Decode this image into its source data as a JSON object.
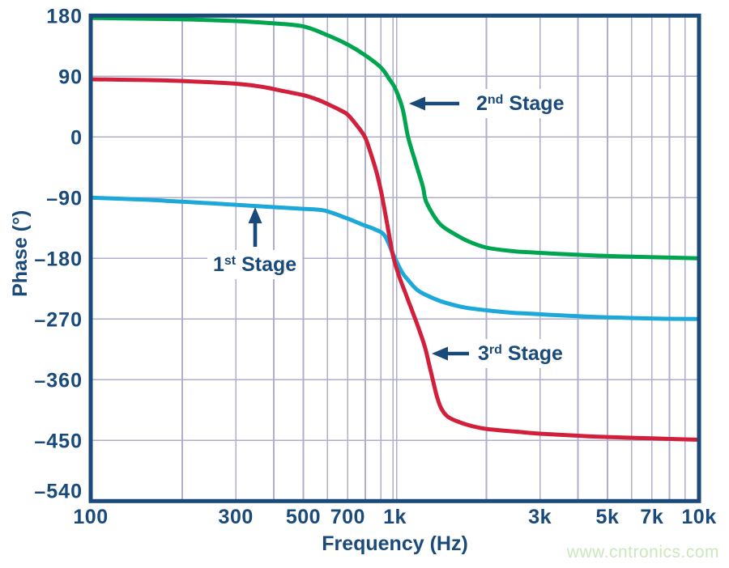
{
  "figure": {
    "watermark": {
      "text": "www.cntronics.com",
      "color": "#CBE8BD"
    },
    "colors": {
      "navy": "#1A4A7A",
      "grid": "#AFAECB",
      "background": "#FFFFFF",
      "stage1_cyan": "#1CA8D8",
      "stage2_green": "#00A550",
      "stage3_red": "#D2203C"
    }
  },
  "chart_data": {
    "type": "line",
    "title": "",
    "xlabel": "Frequency (Hz)",
    "ylabel": "Phase (°)",
    "x_scale": "log",
    "x_range": [
      100,
      10000
    ],
    "y_range": [
      -540,
      180
    ],
    "grid": true,
    "y_ticks": [
      {
        "label": "180",
        "value": 180
      },
      {
        "label": "90",
        "value": 90
      },
      {
        "label": "0",
        "value": 0
      },
      {
        "label": "–90",
        "value": -90
      },
      {
        "label": "–180",
        "value": -180
      },
      {
        "label": "–270",
        "value": -270
      },
      {
        "label": "–360",
        "value": -360
      },
      {
        "label": "–450",
        "value": -450
      },
      {
        "label": "–540",
        "value": -540
      }
    ],
    "x_ticks": [
      {
        "label": "100",
        "value": 100
      },
      {
        "label": "300",
        "value": 300
      },
      {
        "label": "500",
        "value": 500
      },
      {
        "label": "700",
        "value": 700
      },
      {
        "label": "1k",
        "value": 1000
      },
      {
        "label": "3k",
        "value": 3000
      },
      {
        "label": "5k",
        "value": 5000
      },
      {
        "label": "7k",
        "value": 7000
      },
      {
        "label": "10k",
        "value": 10000
      }
    ],
    "x_gridlines": [
      200,
      300,
      400,
      500,
      600,
      700,
      800,
      900,
      2000,
      3000,
      4000,
      5000,
      6000,
      7000,
      8000,
      9000
    ],
    "x_gridline_major": 1000,
    "y_gridlines": [
      90,
      0,
      -90,
      -180,
      -270,
      -360,
      -450
    ],
    "series": [
      {
        "name": "2nd Stage",
        "color": "#00A550",
        "points": [
          [
            100,
            176.5
          ],
          [
            150,
            175.5
          ],
          [
            200,
            174.5
          ],
          [
            300,
            172
          ],
          [
            400,
            168.5
          ],
          [
            500,
            164
          ],
          [
            600,
            151
          ],
          [
            700,
            137
          ],
          [
            800,
            121
          ],
          [
            900,
            103
          ],
          [
            955,
            87
          ],
          [
            1005,
            71
          ],
          [
            1060,
            42
          ],
          [
            1105,
            0
          ],
          [
            1170,
            -38
          ],
          [
            1235,
            -73
          ],
          [
            1270,
            -97
          ],
          [
            1400,
            -128
          ],
          [
            1560,
            -143
          ],
          [
            1750,
            -155
          ],
          [
            2000,
            -164
          ],
          [
            2400,
            -169
          ],
          [
            2760,
            -171
          ],
          [
            3670,
            -174
          ],
          [
            5000,
            -176.5
          ],
          [
            7500,
            -178.5
          ],
          [
            10000,
            -180
          ]
        ]
      },
      {
        "name": "1st Stage",
        "color": "#1CA8D8",
        "points": [
          [
            100,
            -90
          ],
          [
            150,
            -93
          ],
          [
            200,
            -96
          ],
          [
            300,
            -100.5
          ],
          [
            400,
            -104
          ],
          [
            500,
            -106.5
          ],
          [
            584,
            -109
          ],
          [
            681,
            -119
          ],
          [
            794,
            -131
          ],
          [
            860,
            -137
          ],
          [
            925,
            -146
          ],
          [
            985,
            -173
          ],
          [
            1050,
            -199
          ],
          [
            1100,
            -211
          ],
          [
            1194,
            -228
          ],
          [
            1350,
            -240
          ],
          [
            1471,
            -246
          ],
          [
            1700,
            -253
          ],
          [
            2000,
            -257
          ],
          [
            2400,
            -260.5
          ],
          [
            2760,
            -262
          ],
          [
            3670,
            -265
          ],
          [
            5000,
            -267.5
          ],
          [
            7500,
            -269.5
          ],
          [
            10000,
            -270
          ]
        ]
      },
      {
        "name": "3rd Stage",
        "color": "#D2203C",
        "points": [
          [
            100,
            85.5
          ],
          [
            150,
            84.5
          ],
          [
            200,
            83
          ],
          [
            300,
            79
          ],
          [
            370,
            74
          ],
          [
            430,
            68
          ],
          [
            500,
            62
          ],
          [
            560,
            55
          ],
          [
            620,
            46
          ],
          [
            660,
            40
          ],
          [
            700,
            33
          ],
          [
            750,
            17
          ],
          [
            797,
            0
          ],
          [
            830,
            -22
          ],
          [
            870,
            -52
          ],
          [
            905,
            -85
          ],
          [
            940,
            -125
          ],
          [
            985,
            -175
          ],
          [
            1030,
            -205
          ],
          [
            1080,
            -230
          ],
          [
            1140,
            -258
          ],
          [
            1200,
            -285
          ],
          [
            1258,
            -313
          ],
          [
            1295,
            -337
          ],
          [
            1334,
            -361
          ],
          [
            1375,
            -385
          ],
          [
            1422,
            -403
          ],
          [
            1494,
            -415
          ],
          [
            1630,
            -423
          ],
          [
            1800,
            -429
          ],
          [
            2000,
            -433
          ],
          [
            2500,
            -437
          ],
          [
            3000,
            -440
          ],
          [
            4000,
            -443
          ],
          [
            5000,
            -445
          ],
          [
            7000,
            -447
          ],
          [
            10000,
            -449
          ]
        ]
      }
    ],
    "annotations": [
      {
        "id": "stage-2",
        "num": "2",
        "sup": "nd",
        "rest": " Stage",
        "text_x": 588,
        "text_y": 136,
        "arrow": {
          "dir": "left",
          "tip_x": 505,
          "tip_y": 128,
          "tail_x": 567,
          "tail_y": 128
        }
      },
      {
        "id": "stage-1",
        "num": "1",
        "sup": "st",
        "rest": " Stage",
        "text_x": 263,
        "text_y": 335,
        "arrow": {
          "dir": "up",
          "tip_x": 315,
          "tip_y": 256,
          "tail_x": 315,
          "tail_y": 305
        }
      },
      {
        "id": "stage-3",
        "num": "3",
        "sup": "rd",
        "rest": " Stage",
        "text_x": 590,
        "text_y": 445,
        "arrow": {
          "dir": "left",
          "tip_x": 533,
          "tip_y": 437,
          "tail_x": 579,
          "tail_y": 437
        }
      }
    ],
    "legend_position": "none"
  }
}
